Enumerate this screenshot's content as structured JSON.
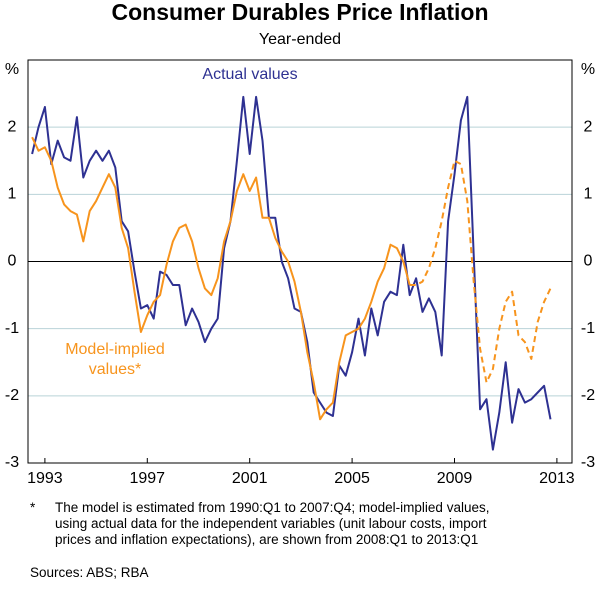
{
  "chart_data": {
    "type": "line",
    "title": "Consumer Durables Price Inflation",
    "subtitle": "Year-ended",
    "y_unit": "%",
    "x": [
      1993,
      1993.25,
      1993.5,
      1993.75,
      1994,
      1994.25,
      1994.5,
      1994.75,
      1995,
      1995.25,
      1995.5,
      1995.75,
      1996,
      1996.25,
      1996.5,
      1996.75,
      1997,
      1997.25,
      1997.5,
      1997.75,
      1998,
      1998.25,
      1998.5,
      1998.75,
      1999,
      1999.25,
      1999.5,
      1999.75,
      2000,
      2000.25,
      2000.5,
      2000.75,
      2001,
      2001.25,
      2001.5,
      2001.75,
      2002,
      2002.25,
      2002.5,
      2002.75,
      2003,
      2003.25,
      2003.5,
      2003.75,
      2004,
      2004.25,
      2004.5,
      2004.75,
      2005,
      2005.25,
      2005.5,
      2005.75,
      2006,
      2006.25,
      2006.5,
      2006.75,
      2007,
      2007.25,
      2007.5,
      2007.75,
      2008,
      2008.25,
      2008.5,
      2008.75,
      2009,
      2009.25,
      2009.5,
      2009.75,
      2010,
      2010.25,
      2010.5,
      2010.75,
      2011,
      2011.25,
      2011.5,
      2011.75,
      2012,
      2012.25,
      2012.5,
      2012.75,
      2013,
      2013.25
    ],
    "series": [
      {
        "name": "Actual values",
        "color": "#2e3192",
        "values": [
          1.6,
          2.0,
          2.3,
          1.45,
          1.8,
          1.55,
          1.5,
          2.15,
          1.25,
          1.5,
          1.65,
          1.5,
          1.65,
          1.4,
          0.6,
          0.45,
          -0.15,
          -0.7,
          -0.65,
          -0.85,
          -0.15,
          -0.2,
          -0.35,
          -0.35,
          -0.95,
          -0.7,
          -0.9,
          -1.2,
          -1.0,
          -0.85,
          0.2,
          0.6,
          1.5,
          2.45,
          1.6,
          2.45,
          1.8,
          0.65,
          0.65,
          0.0,
          -0.25,
          -0.7,
          -0.75,
          -1.2,
          -1.95,
          -2.1,
          -2.25,
          -2.3,
          -1.55,
          -1.7,
          -1.35,
          -0.85,
          -1.4,
          -0.7,
          -1.1,
          -0.6,
          -0.45,
          -0.5,
          0.25,
          -0.5,
          -0.25,
          -0.75,
          -0.55,
          -0.75,
          -1.4,
          0.6,
          1.3,
          2.1,
          2.45,
          0.1,
          -2.2,
          -2.05,
          -2.8,
          -2.25,
          -1.5,
          -2.4,
          -1.9,
          -2.1,
          -2.05,
          -1.95,
          -1.85,
          -2.35
        ]
      },
      {
        "name": "Model-implied values*",
        "color": "#f7941d",
        "dashed_from": 2008,
        "values": [
          1.85,
          1.65,
          1.7,
          1.5,
          1.1,
          0.85,
          0.75,
          0.7,
          0.3,
          0.75,
          0.9,
          1.1,
          1.3,
          1.1,
          0.5,
          0.2,
          -0.45,
          -1.05,
          -0.8,
          -0.6,
          -0.5,
          -0.05,
          0.3,
          0.5,
          0.55,
          0.3,
          -0.1,
          -0.4,
          -0.5,
          -0.25,
          0.3,
          0.6,
          1.05,
          1.3,
          1.05,
          1.25,
          0.65,
          0.65,
          0.35,
          0.15,
          0.0,
          -0.3,
          -0.75,
          -1.35,
          -1.8,
          -2.35,
          -2.2,
          -2.1,
          -1.5,
          -1.1,
          -1.05,
          -1.0,
          -0.85,
          -0.6,
          -0.3,
          -0.1,
          0.25,
          0.2,
          0.0,
          -0.35,
          -0.35,
          -0.3,
          -0.1,
          0.2,
          0.6,
          1.1,
          1.5,
          1.45,
          0.9,
          -0.3,
          -1.3,
          -1.8,
          -1.6,
          -1.0,
          -0.6,
          -0.45,
          -1.1,
          -1.2,
          -1.45,
          -0.9,
          -0.6,
          -0.4
        ]
      }
    ],
    "xlim": [
      1992.84,
      2014.09
    ],
    "xticks": [
      {
        "value": 1993.5,
        "label": "1993"
      },
      {
        "value": 1997.5,
        "label": "1997"
      },
      {
        "value": 2001.5,
        "label": "2001"
      },
      {
        "value": 2005.5,
        "label": "2005"
      },
      {
        "value": 2009.5,
        "label": "2009"
      },
      {
        "value": 2013.5,
        "label": "2013"
      }
    ],
    "ylim": [
      -3,
      3
    ],
    "yticks": [
      -3,
      -2,
      -1,
      0,
      1,
      2
    ],
    "grid": true,
    "zero_line": true,
    "footnote_marker": "*",
    "footnote": "The model is estimated from 1990:Q1 to 2007:Q4; model-implied values, using actual data for the independent variables (unit labour costs, import prices and inflation expectations), are shown from 2008:Q1 to 2013:Q1",
    "source": "Sources: ABS; RBA"
  }
}
